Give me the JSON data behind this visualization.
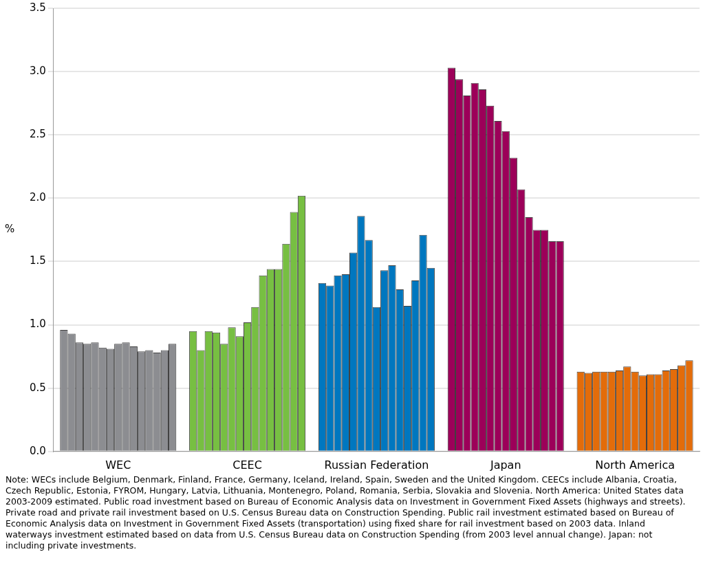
{
  "chart_data": {
    "type": "bar",
    "ylabel": "%",
    "categories": [
      "WEC",
      "CEEC",
      "Russian Federation",
      "Japan",
      "North America"
    ],
    "series": [
      {
        "colors": [
          "#8c8d91",
          "#77bf42",
          "#0077bf",
          "#9c0059",
          "#e36c0a"
        ],
        "values": [
          0.96,
          0.95,
          1.33,
          3.03,
          0.63
        ]
      },
      {
        "colors": [
          "#8c8d91",
          "#77bf42",
          "#0077bf",
          "#9c0059",
          "#e36c0a"
        ],
        "values": [
          0.93,
          0.8,
          1.31,
          2.94,
          0.62
        ]
      },
      {
        "colors": [
          "#8c8d91",
          "#77bf42",
          "#0077bf",
          "#9c0059",
          "#e36c0a"
        ],
        "values": [
          0.86,
          0.95,
          1.39,
          2.81,
          0.63
        ]
      },
      {
        "colors": [
          "#8c8d91",
          "#77bf42",
          "#0077bf",
          "#9c0059",
          "#e36c0a"
        ],
        "values": [
          0.85,
          0.94,
          1.4,
          2.91,
          0.63
        ]
      },
      {
        "colors": [
          "#8c8d91",
          "#77bf42",
          "#0077bf",
          "#9c0059",
          "#e36c0a"
        ],
        "values": [
          0.86,
          0.85,
          1.57,
          2.86,
          0.63
        ]
      },
      {
        "colors": [
          "#8c8d91",
          "#77bf42",
          "#0077bf",
          "#9c0059",
          "#e36c0a"
        ],
        "values": [
          0.82,
          0.98,
          1.86,
          2.73,
          0.64
        ]
      },
      {
        "colors": [
          "#8c8d91",
          "#77bf42",
          "#0077bf",
          "#9c0059",
          "#e36c0a"
        ],
        "values": [
          0.81,
          0.91,
          1.67,
          2.61,
          0.67
        ]
      },
      {
        "colors": [
          "#8c8d91",
          "#77bf42",
          "#0077bf",
          "#9c0059",
          "#e36c0a"
        ],
        "values": [
          0.85,
          1.02,
          1.14,
          2.53,
          0.63
        ]
      },
      {
        "colors": [
          "#8c8d91",
          "#77bf42",
          "#0077bf",
          "#9c0059",
          "#e36c0a"
        ],
        "values": [
          0.86,
          1.14,
          1.43,
          2.32,
          0.6
        ]
      },
      {
        "colors": [
          "#8c8d91",
          "#77bf42",
          "#0077bf",
          "#9c0059",
          "#e36c0a"
        ],
        "values": [
          0.83,
          1.39,
          1.47,
          2.07,
          0.61
        ]
      },
      {
        "colors": [
          "#8c8d91",
          "#77bf42",
          "#0077bf",
          "#9c0059",
          "#e36c0a"
        ],
        "values": [
          0.79,
          1.44,
          1.28,
          1.85,
          0.61
        ]
      },
      {
        "colors": [
          "#8c8d91",
          "#77bf42",
          "#0077bf",
          "#9c0059",
          "#e36c0a"
        ],
        "values": [
          0.8,
          1.44,
          1.15,
          1.75,
          0.64
        ]
      },
      {
        "colors": [
          "#8c8d91",
          "#77bf42",
          "#0077bf",
          "#9c0059",
          "#e36c0a"
        ],
        "values": [
          0.78,
          1.64,
          1.35,
          1.75,
          0.65
        ]
      },
      {
        "colors": [
          "#8c8d91",
          "#77bf42",
          "#0077bf",
          "#9c0059",
          "#e36c0a"
        ],
        "values": [
          0.8,
          1.89,
          1.71,
          1.66,
          0.68
        ]
      },
      {
        "colors": [
          "#8c8d91",
          "#77bf42",
          "#0077bf",
          "#9c0059",
          "#e36c0a"
        ],
        "values": [
          0.85,
          2.02,
          1.45,
          1.66,
          0.72
        ]
      }
    ],
    "ylim": [
      0,
      3.5
    ],
    "yticks": [
      {
        "value": 0,
        "label": "0.0"
      },
      0.5,
      {
        "value": 1,
        "label": "1.0"
      },
      1.5,
      {
        "value": 2,
        "label": "2.0"
      },
      2.5,
      {
        "value": 3,
        "label": "3.0"
      },
      3.5
    ],
    "grid": "y",
    "legend": false,
    "annotations": [
      "Note: WECs include Belgium, Denmark, Finland, France, Germany, Iceland, Ireland, Spain, Sweden and the United Kingdom. CEECs include Albania, Croatia, Czech Republic, Estonia, FYROM, Hungary, Latvia, Lithuania, Montenegro, Poland, Romania, Serbia, Slovakia and Slovenia. North America:  United States data 2003-2009 estimated. Public road investment based on Bureau of Economic Analysis data on Investment in Government Fixed Assets (highways and streets). Private road and private rail investment based on U.S. Census Bureau data on Construction Spending. Public rail investment estimated based on Bureau of Economic Analysis data on Investment in Government Fixed Assets (transportation) using fixed share for rail investment based on 2003 data. Inland waterways investment estimated based on data from U.S. Census Bureau data on Construction Spending (from 2003 level annual change). Japan: not including private investments."
    ]
  }
}
